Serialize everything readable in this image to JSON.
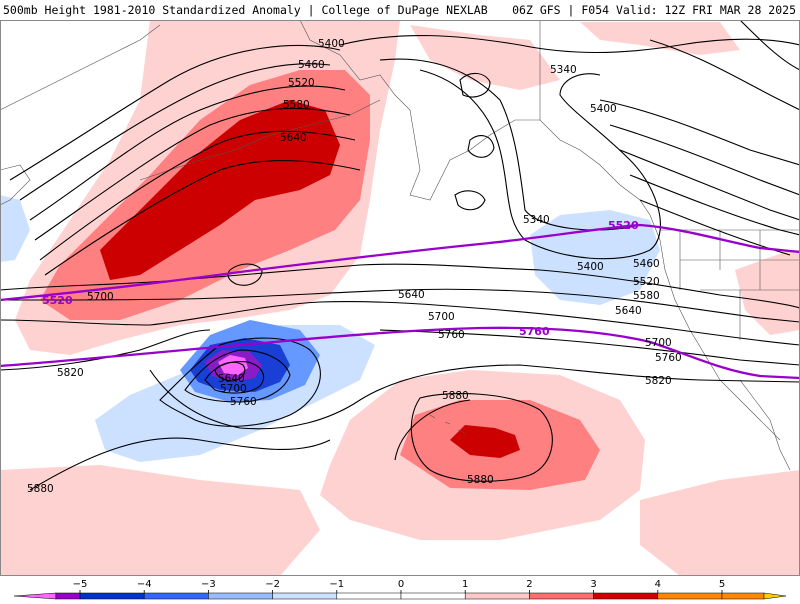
{
  "header": {
    "title": "500mb Height 1981-2010 Standardized Anomaly | College of DuPage NEXLAB",
    "run_info": "06Z GFS | F054 Valid: 12Z FRI MAR 28 2025"
  },
  "map": {
    "contour_labels": [
      "5400",
      "5460",
      "5520",
      "5580",
      "5640",
      "5340",
      "5400",
      "5340",
      "5400",
      "5460",
      "5520",
      "5580",
      "5640",
      "5700",
      "5640",
      "5700",
      "5760",
      "5760",
      "5820",
      "5820",
      "5700",
      "5640",
      "5760",
      "5880",
      "5880",
      "5880",
      "5700"
    ],
    "climatology_labels": [
      "5520",
      "5520",
      "5760"
    ]
  },
  "colorbar": {
    "ticks": [
      "−5",
      "−4",
      "−3",
      "−2",
      "−1",
      "0",
      "1",
      "2",
      "3",
      "4",
      "5"
    ],
    "colors": [
      "#ff66ff",
      "#9900cc",
      "#0033cc",
      "#3366ff",
      "#99bbff",
      "#cce0ff",
      "#ffffff",
      "#ffffff",
      "#ffc8c8",
      "#ff6e6e",
      "#d40000",
      "#ff8800",
      "#ffcc00"
    ]
  }
}
